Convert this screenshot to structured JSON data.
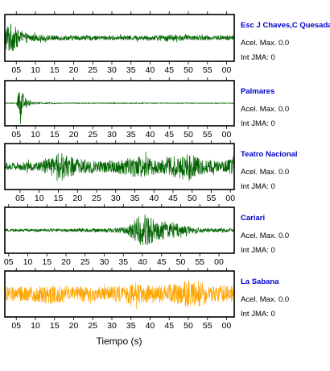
{
  "chart_data": [
    {
      "type": "line",
      "station": "Esc J Chaves,C Quesada",
      "acel_label": "Acel. Max. 0.0",
      "jma_label": "Int JMA: 0",
      "color": "#006400",
      "tick_labels": [
        "05",
        "10",
        "15",
        "20",
        "25",
        "30",
        "35",
        "40",
        "45",
        "50",
        "55",
        "00"
      ],
      "seconds_at_ticks": [
        5,
        10,
        15,
        20,
        25,
        30,
        35,
        40,
        45,
        50,
        55,
        60
      ],
      "x_range_s": [
        2,
        62
      ],
      "envelope": [
        {
          "t": 2,
          "a": 0.7
        },
        {
          "t": 3,
          "a": 1.0
        },
        {
          "t": 4.5,
          "a": 0.75
        },
        {
          "t": 6,
          "a": 0.4
        },
        {
          "t": 9,
          "a": 0.22
        },
        {
          "t": 15,
          "a": 0.16
        },
        {
          "t": 25,
          "a": 0.14
        },
        {
          "t": 40,
          "a": 0.15
        },
        {
          "t": 46,
          "a": 0.22
        },
        {
          "t": 50,
          "a": 0.15
        },
        {
          "t": 62,
          "a": 0.14
        }
      ]
    },
    {
      "type": "line",
      "station": "Palmares",
      "acel_label": "Acel. Max. 0.0",
      "jma_label": "Int JMA: 0",
      "color": "#006400",
      "tick_labels": [
        "05",
        "10",
        "15",
        "20",
        "25",
        "30",
        "35",
        "40",
        "45",
        "50",
        "55",
        "00"
      ],
      "seconds_at_ticks": [
        5,
        10,
        15,
        20,
        25,
        30,
        35,
        40,
        45,
        50,
        55,
        60
      ],
      "x_range_s": [
        2,
        62
      ],
      "envelope": [
        {
          "t": 2,
          "a": 0.02
        },
        {
          "t": 5,
          "a": 0.03
        },
        {
          "t": 5.5,
          "a": 0.6
        },
        {
          "t": 6,
          "a": 1.0
        },
        {
          "t": 7,
          "a": 0.45
        },
        {
          "t": 9,
          "a": 0.08
        },
        {
          "t": 15,
          "a": 0.03
        },
        {
          "t": 62,
          "a": 0.02
        }
      ]
    },
    {
      "type": "line",
      "station": "Teatro Nacional",
      "acel_label": "Acel. Max. 0.0",
      "jma_label": "Int JMA: 0",
      "color": "#006400",
      "tick_labels": [
        "05",
        "10",
        "15",
        "20",
        "25",
        "30",
        "35",
        "40",
        "45",
        "50",
        "55",
        "00"
      ],
      "seconds_at_ticks": [
        5,
        10,
        15,
        20,
        25,
        30,
        35,
        40,
        45,
        50,
        55,
        60
      ],
      "x_range_s": [
        1,
        61
      ],
      "envelope": [
        {
          "t": 1,
          "a": 0.25
        },
        {
          "t": 10,
          "a": 0.3
        },
        {
          "t": 13,
          "a": 0.55
        },
        {
          "t": 16,
          "a": 0.9
        },
        {
          "t": 19,
          "a": 0.55
        },
        {
          "t": 25,
          "a": 0.35
        },
        {
          "t": 30,
          "a": 0.4
        },
        {
          "t": 36,
          "a": 0.7
        },
        {
          "t": 38,
          "a": 0.6
        },
        {
          "t": 42,
          "a": 0.45
        },
        {
          "t": 47,
          "a": 0.8
        },
        {
          "t": 49,
          "a": 1.0
        },
        {
          "t": 52,
          "a": 0.5
        },
        {
          "t": 57,
          "a": 0.35
        },
        {
          "t": 61,
          "a": 0.5
        }
      ]
    },
    {
      "type": "line",
      "station": "Cariari",
      "acel_label": "Acel. Max. 0.0",
      "jma_label": "Int JMA: 0",
      "color": "#006400",
      "tick_labels": [
        "05",
        "10",
        "15",
        "20",
        "25",
        "30",
        "35",
        "40",
        "45",
        "50",
        "55",
        "00"
      ],
      "seconds_at_ticks": [
        5,
        10,
        15,
        20,
        25,
        30,
        35,
        40,
        45,
        50,
        55,
        60
      ],
      "x_range_s": [
        4,
        64
      ],
      "envelope": [
        {
          "t": 4,
          "a": 0.08
        },
        {
          "t": 20,
          "a": 0.1
        },
        {
          "t": 30,
          "a": 0.12
        },
        {
          "t": 35,
          "a": 0.18
        },
        {
          "t": 37,
          "a": 0.5
        },
        {
          "t": 39,
          "a": 0.9
        },
        {
          "t": 41,
          "a": 1.0
        },
        {
          "t": 44,
          "a": 0.6
        },
        {
          "t": 48,
          "a": 0.5
        },
        {
          "t": 51,
          "a": 0.3
        },
        {
          "t": 55,
          "a": 0.15
        },
        {
          "t": 64,
          "a": 0.1
        }
      ]
    },
    {
      "type": "line",
      "station": "La Sabana",
      "acel_label": "Acel. Max. 0.0",
      "jma_label": "Int JMA: 0",
      "color": "#FFA500",
      "tick_labels": [
        "05",
        "10",
        "15",
        "20",
        "25",
        "30",
        "35",
        "40",
        "45",
        "50",
        "55",
        "00"
      ],
      "seconds_at_ticks": [
        5,
        10,
        15,
        20,
        25,
        30,
        35,
        40,
        45,
        50,
        55,
        60
      ],
      "x_range_s": [
        2,
        62
      ],
      "xlabel": "Tiempo (s)",
      "envelope": [
        {
          "t": 2,
          "a": 0.45
        },
        {
          "t": 10,
          "a": 0.5
        },
        {
          "t": 14,
          "a": 0.65
        },
        {
          "t": 20,
          "a": 0.5
        },
        {
          "t": 28,
          "a": 0.45
        },
        {
          "t": 35,
          "a": 0.6
        },
        {
          "t": 40,
          "a": 0.55
        },
        {
          "t": 46,
          "a": 0.65
        },
        {
          "t": 50,
          "a": 0.85
        },
        {
          "t": 52,
          "a": 1.0
        },
        {
          "t": 55,
          "a": 0.6
        },
        {
          "t": 62,
          "a": 0.5
        }
      ]
    }
  ]
}
